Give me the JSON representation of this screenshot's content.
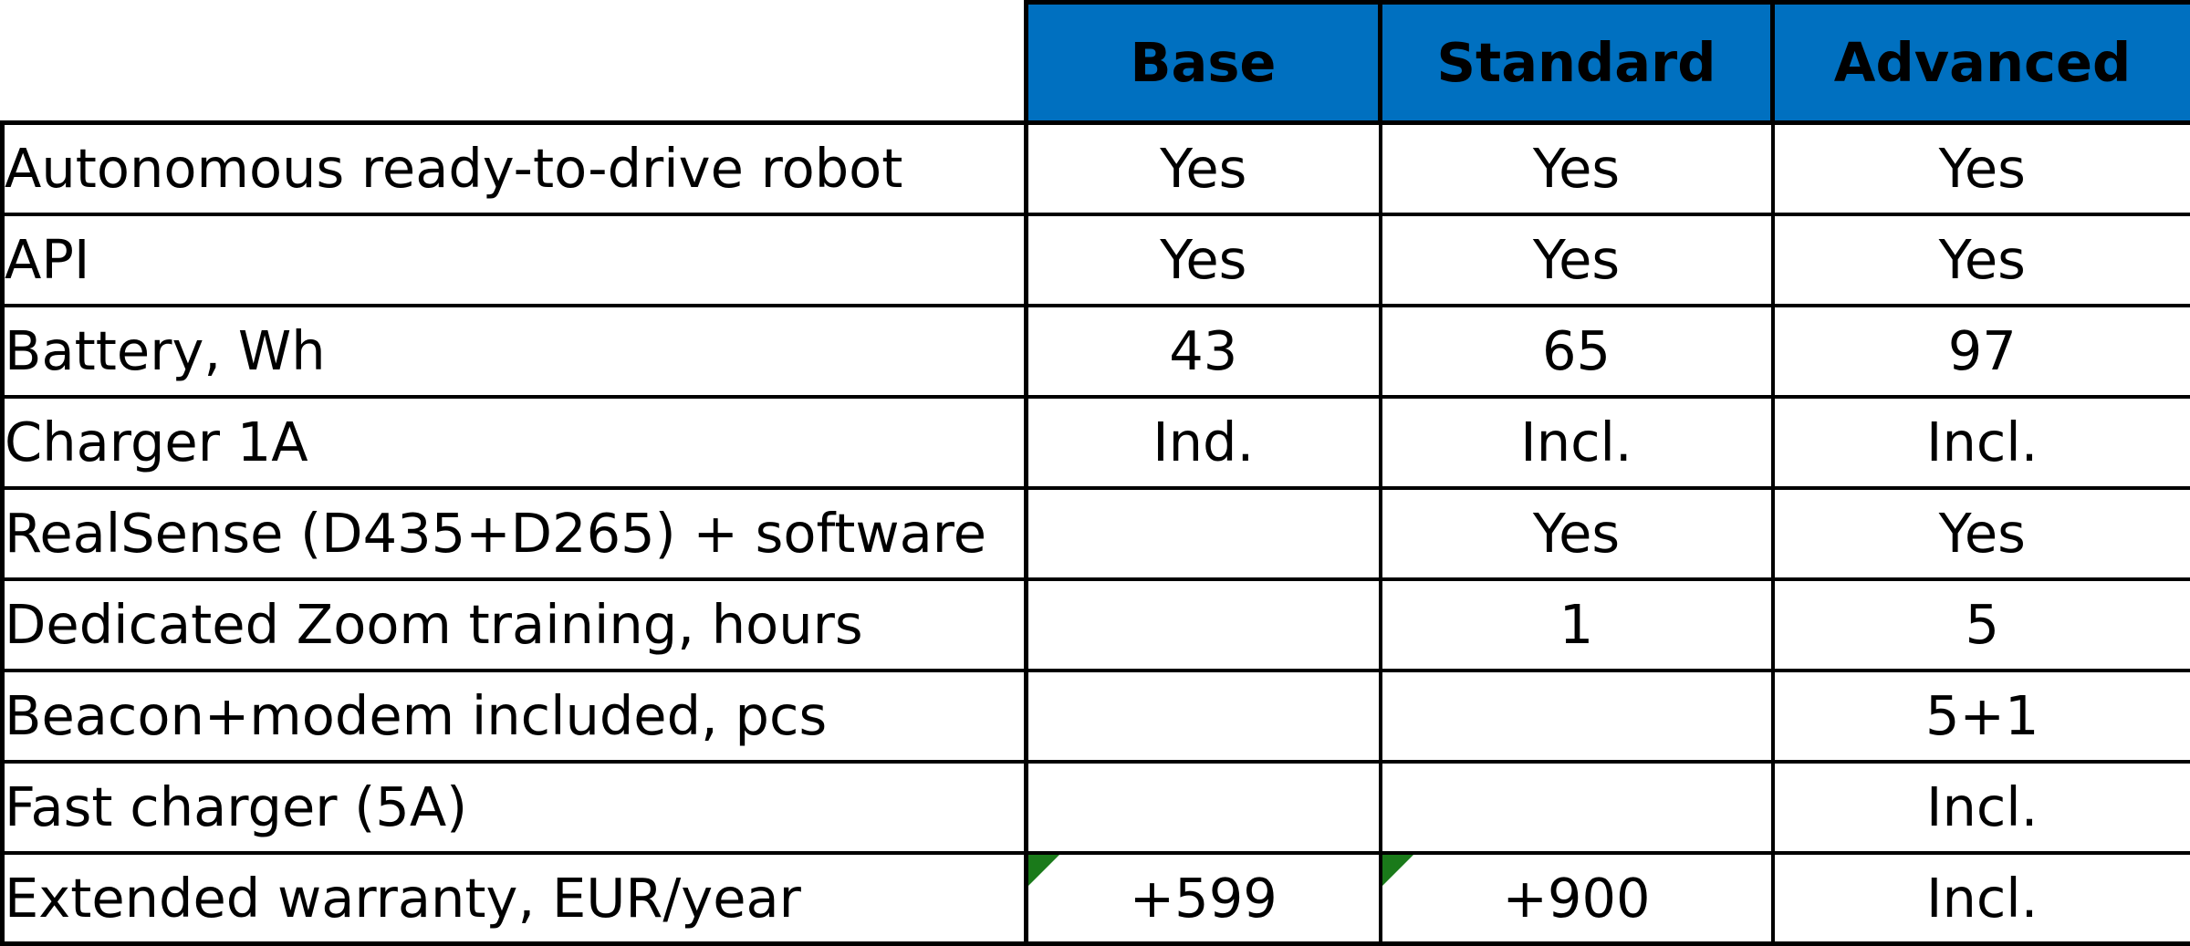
{
  "header": {
    "columns": [
      "Base",
      "Standard",
      "Advanced"
    ]
  },
  "rows": [
    {
      "label": "Autonomous ready-to-drive robot",
      "values": [
        "Yes",
        "Yes",
        "Yes"
      ]
    },
    {
      "label": "API",
      "values": [
        "Yes",
        "Yes",
        "Yes"
      ]
    },
    {
      "label": "Battery, Wh",
      "values": [
        "43",
        "65",
        "97"
      ]
    },
    {
      "label": "Charger 1A",
      "values": [
        "Ind.",
        "Incl.",
        "Incl."
      ]
    },
    {
      "label": "RealSense (D435+D265) + software",
      "values": [
        "",
        "Yes",
        "Yes"
      ]
    },
    {
      "label": "Dedicated Zoom training, hours",
      "values": [
        "",
        "1",
        "5"
      ]
    },
    {
      "label": "Beacon+modem included, pcs",
      "values": [
        "",
        "",
        "5+1"
      ]
    },
    {
      "label": "Fast charger (5A)",
      "values": [
        "",
        "",
        "Incl."
      ]
    },
    {
      "label": "Extended warranty, EUR/year",
      "values": [
        "+599",
        "+900",
        "Incl."
      ]
    }
  ],
  "colors": {
    "header_background": "#0070c0",
    "header_text": "#ffffff",
    "comment_marker": "#1a7a1a"
  }
}
